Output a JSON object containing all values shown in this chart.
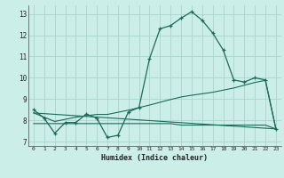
{
  "xlabel": "Humidex (Indice chaleur)",
  "bg_color": "#cceee8",
  "grid_color": "#aad4ce",
  "line_color": "#1a6b5a",
  "xlim": [
    -0.5,
    23.5
  ],
  "ylim": [
    6.8,
    13.4
  ],
  "xticks": [
    0,
    1,
    2,
    3,
    4,
    5,
    6,
    7,
    8,
    9,
    10,
    11,
    12,
    13,
    14,
    15,
    16,
    17,
    18,
    19,
    20,
    21,
    22,
    23
  ],
  "yticks": [
    7,
    8,
    9,
    10,
    11,
    12,
    13
  ],
  "series1_x": [
    0,
    1,
    2,
    3,
    4,
    5,
    6,
    7,
    8,
    9,
    10,
    11,
    12,
    13,
    14,
    15,
    16,
    17,
    18,
    19,
    20,
    21,
    22,
    23
  ],
  "series1_y": [
    8.5,
    8.1,
    7.4,
    7.9,
    7.9,
    8.3,
    8.1,
    7.2,
    7.3,
    8.4,
    8.6,
    10.9,
    12.3,
    12.45,
    12.8,
    13.1,
    12.7,
    12.1,
    11.3,
    9.9,
    9.8,
    10.0,
    9.9,
    7.6
  ],
  "series2_x": [
    0,
    1,
    2,
    3,
    4,
    5,
    6,
    7,
    8,
    9,
    10,
    11,
    12,
    13,
    14,
    15,
    16,
    17,
    18,
    19,
    20,
    21,
    22,
    23
  ],
  "series2_y": [
    8.35,
    8.15,
    7.95,
    8.05,
    8.15,
    8.22,
    8.28,
    8.28,
    8.38,
    8.48,
    8.6,
    8.72,
    8.85,
    8.98,
    9.1,
    9.18,
    9.25,
    9.32,
    9.42,
    9.52,
    9.65,
    9.78,
    9.88,
    7.6
  ],
  "series3_x": [
    0,
    23
  ],
  "series3_y": [
    8.35,
    7.6
  ],
  "series4_x": [
    0,
    1,
    2,
    3,
    4,
    5,
    6,
    7,
    8,
    9,
    10,
    11,
    12,
    13,
    14,
    15,
    16,
    17,
    18,
    19,
    20,
    21,
    22,
    23
  ],
  "series4_y": [
    7.85,
    7.85,
    7.85,
    7.85,
    7.85,
    7.85,
    7.85,
    7.85,
    7.85,
    7.85,
    7.85,
    7.85,
    7.85,
    7.85,
    7.78,
    7.78,
    7.78,
    7.78,
    7.78,
    7.78,
    7.78,
    7.78,
    7.78,
    7.6
  ]
}
